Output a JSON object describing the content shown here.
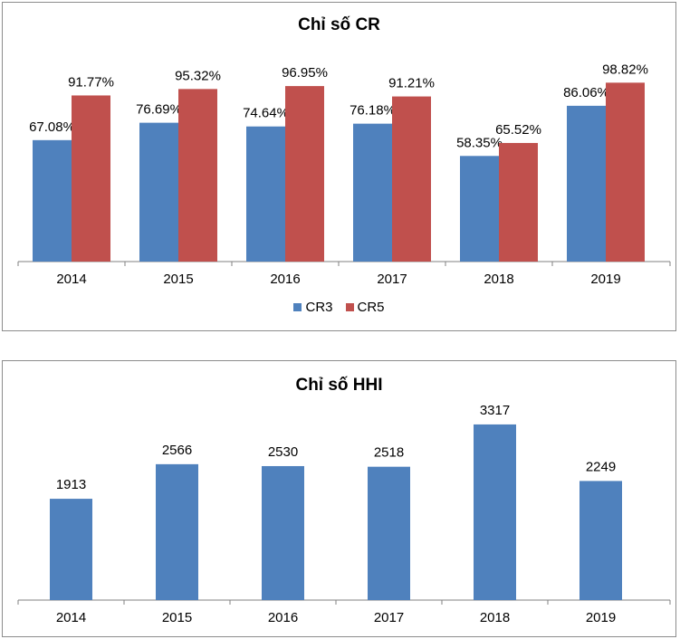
{
  "charts": {
    "cr": {
      "title": "Chỉ số CR"
    },
    "hhi": {
      "title": "Chỉ số HHI"
    }
  },
  "colors": {
    "cr3": "#4f81bd",
    "cr5": "#c0504d",
    "hhi": "#4f81bd",
    "axis": "#808080"
  },
  "chart_data": [
    {
      "type": "bar",
      "title": "Chỉ số CR",
      "categories": [
        "2014",
        "2015",
        "2016",
        "2017",
        "2018",
        "2019"
      ],
      "series": [
        {
          "name": "CR3",
          "values": [
            67.08,
            76.69,
            74.64,
            76.18,
            58.35,
            86.06
          ],
          "labels": [
            "67.08%",
            "76.69%",
            "74.64%",
            "76.18%",
            "58.35%",
            "86.06%"
          ]
        },
        {
          "name": "CR5",
          "values": [
            91.77,
            95.32,
            96.95,
            91.21,
            65.52,
            98.82
          ],
          "labels": [
            "91.77%",
            "95.32%",
            "96.95%",
            "91.21%",
            "65.52%",
            "98.82%"
          ]
        }
      ],
      "ylim": [
        0,
        100
      ],
      "grid": false,
      "legend": "bottom"
    },
    {
      "type": "bar",
      "title": "Chỉ số HHI",
      "categories": [
        "2014",
        "2015",
        "2016",
        "2017",
        "2018",
        "2019"
      ],
      "series": [
        {
          "values": [
            1913,
            2566,
            2530,
            2518,
            3317,
            2249
          ],
          "labels": [
            "1913",
            "2566",
            "2530",
            "2518",
            "3317",
            "2249"
          ]
        }
      ],
      "ylim": [
        0,
        3350
      ],
      "grid": false,
      "legend": "none"
    }
  ]
}
